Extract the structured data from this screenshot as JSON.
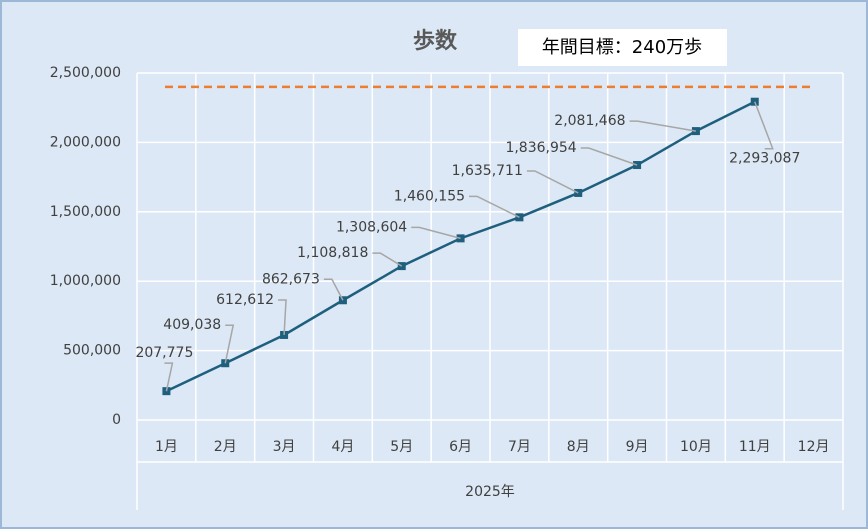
{
  "chart_data": {
    "type": "line",
    "title": "歩数",
    "annotation": "年間目標：240万歩",
    "x_label": "2025年",
    "categories": [
      "1月",
      "2月",
      "3月",
      "4月",
      "5月",
      "6月",
      "7月",
      "8月",
      "9月",
      "10月",
      "11月",
      "12月"
    ],
    "values": [
      207775,
      409038,
      612612,
      862673,
      1108818,
      1308604,
      1460155,
      1635711,
      1836954,
      2081468,
      2293087,
      null
    ],
    "value_labels": [
      "207,775",
      "409,038",
      "612,612",
      "862,673",
      "1,108,818",
      "1,308,604",
      "1,460,155",
      "1,635,711",
      "1,836,954",
      "2,081,468",
      "2,293,087",
      null
    ],
    "color": "#1f5f7e",
    "reference_line": {
      "value": 2400000,
      "color": "#ed7d31"
    },
    "ylim": [
      0,
      2500000
    ],
    "yticks": [
      0,
      {
        "value": 500000,
        "label": "500,000"
      },
      {
        "value": 1000000,
        "label": "1,000,000"
      },
      {
        "value": 1500000,
        "label": "1,500,000"
      },
      {
        "value": 2000000,
        "label": "2,000,000"
      },
      {
        "value": 2500000,
        "label": "2,500,000"
      }
    ],
    "grid": true
  }
}
